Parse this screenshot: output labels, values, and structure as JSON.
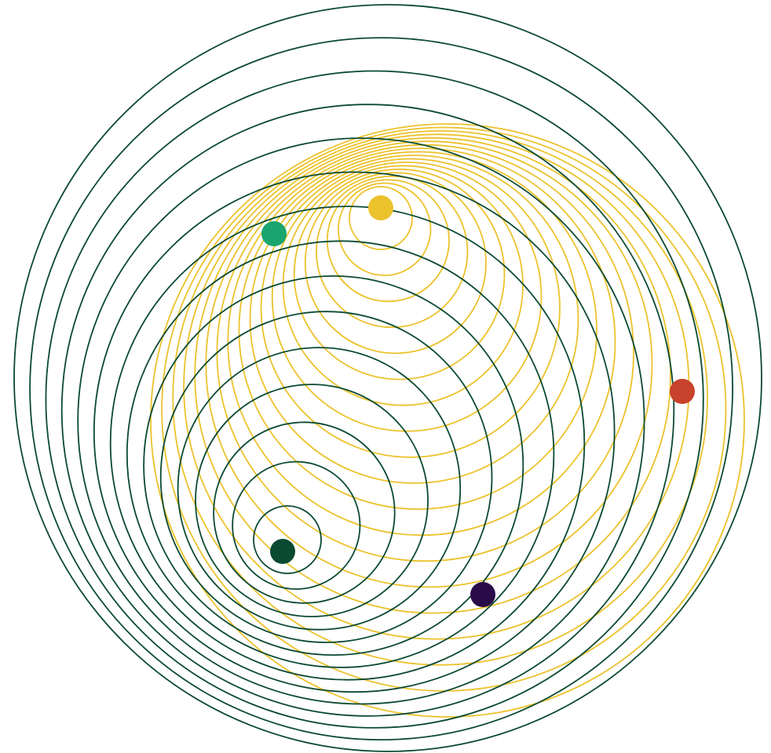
{
  "colors": {
    "background": "#ffffff",
    "green_rings": "#0b4a32",
    "yellow_rings": "#ecc22c",
    "dot_green": "#0b4a32",
    "dot_yellow": "#ecc22c",
    "dot_teal": "#1aa56f",
    "dot_red": "#c8412b",
    "dot_purple": "#2a0b4a"
  }
}
